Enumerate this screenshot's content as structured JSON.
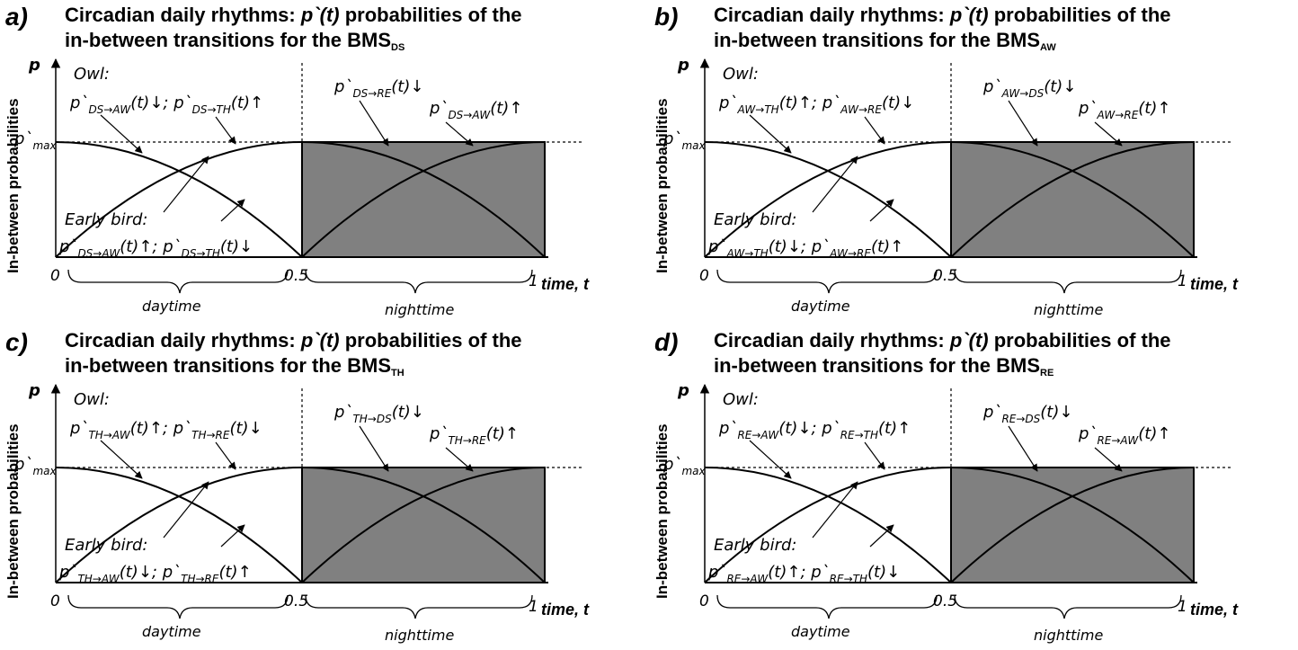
{
  "labels": {
    "ylabel": "In-between probabilities",
    "p_axis": "p",
    "pmax": "p`",
    "pmax_sub": "max",
    "owl": "Owl:",
    "early": "Early bird:",
    "tick0": "0",
    "tick_half": "0.5",
    "tick1": "1",
    "xaxis": "time, t",
    "daytime": "daytime",
    "nighttime": "nighttime",
    "title_line1_pre": "Circadian daily rhythms: ",
    "title_line1_em": "p`(t)",
    "title_line1_post": " probabilities of the",
    "title_line2": "in-between transitions for the BMS"
  },
  "colors": {
    "night_fill": "#808080",
    "line": "#000000"
  },
  "panels": [
    {
      "letter": "a)",
      "bms": "DS",
      "owl": [
        {
          "p": "p`",
          "sub": "DS→AW",
          "tail": "(t)↓; "
        },
        {
          "p": "p`",
          "sub": "DS→TH",
          "tail": "(t)↑"
        }
      ],
      "night1": {
        "p": "p`",
        "sub": "DS→RE",
        "tail": "(t)↓"
      },
      "night2": {
        "p": "p`",
        "sub": "DS→AW",
        "tail": "(t)↑"
      },
      "early": [
        {
          "p": "p`",
          "sub": "DS→AW",
          "tail": "(t)↑; "
        },
        {
          "p": "p`",
          "sub": "DS→TH",
          "tail": "(t)↓"
        }
      ]
    },
    {
      "letter": "b)",
      "bms": "AW",
      "owl": [
        {
          "p": "p`",
          "sub": "AW→TH",
          "tail": "(t)↑; "
        },
        {
          "p": "p`",
          "sub": "AW→RE",
          "tail": "(t)↓"
        }
      ],
      "night1": {
        "p": "p`",
        "sub": "AW→DS",
        "tail": "(t)↓"
      },
      "night2": {
        "p": "p`",
        "sub": "AW→RE",
        "tail": "(t)↑"
      },
      "early": [
        {
          "p": "p`",
          "sub": "AW→TH",
          "tail": "(t)↓; "
        },
        {
          "p": "p`",
          "sub": "AW→RE",
          "tail": "(t)↑"
        }
      ]
    },
    {
      "letter": "c)",
      "bms": "TH",
      "owl": [
        {
          "p": "p`",
          "sub": "TH→AW",
          "tail": "(t)↑; "
        },
        {
          "p": "p`",
          "sub": "TH→RE",
          "tail": "(t)↓"
        }
      ],
      "night1": {
        "p": "p`",
        "sub": "TH→DS",
        "tail": "(t)↓"
      },
      "night2": {
        "p": "p`",
        "sub": "TH→RE",
        "tail": "(t)↑"
      },
      "early": [
        {
          "p": "p`",
          "sub": "TH→AW",
          "tail": "(t)↓; "
        },
        {
          "p": "p`",
          "sub": "TH→RE",
          "tail": "(t)↑"
        }
      ]
    },
    {
      "letter": "d)",
      "bms": "RE",
      "owl": [
        {
          "p": "p`",
          "sub": "RE→AW",
          "tail": "(t)↓; "
        },
        {
          "p": "p`",
          "sub": "RE→TH",
          "tail": "(t)↑"
        }
      ],
      "night1": {
        "p": "p`",
        "sub": "RE→DS",
        "tail": "(t)↓"
      },
      "night2": {
        "p": "p`",
        "sub": "RE→AW",
        "tail": "(t)↑"
      },
      "early": [
        {
          "p": "p`",
          "sub": "RE→AW",
          "tail": "(t)↑; "
        },
        {
          "p": "p`",
          "sub": "RE→TH",
          "tail": "(t)↓"
        }
      ]
    }
  ]
}
